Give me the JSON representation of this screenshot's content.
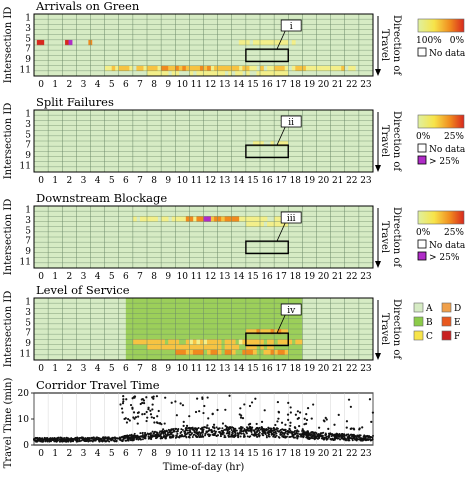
{
  "figure": {
    "x_ticks": [
      "0",
      "1",
      "2",
      "3",
      "4",
      "5",
      "6",
      "7",
      "8",
      "9",
      "10",
      "11",
      "12",
      "13",
      "14",
      "15",
      "16",
      "17",
      "18",
      "19",
      "20",
      "21",
      "22",
      "23"
    ],
    "y_ticks": [
      "1",
      "3",
      "5",
      "7",
      "9",
      "11"
    ],
    "ylabel_heatmap": "Intersection ID",
    "side_label": [
      "Direction of",
      "Travel"
    ],
    "xlabel": "Time-of-day (hr)"
  },
  "chart_data": [
    {
      "type": "heatmap",
      "title": "Arrivals on Green",
      "rows": 12,
      "x_range": [
        0,
        24
      ],
      "callout": "i",
      "highlight_box": {
        "x_from": 15,
        "x_to": 18,
        "row_from": 7,
        "row_to": 8
      },
      "legend": {
        "type": "gradient",
        "low_label": "100%",
        "high_label": "0%",
        "colors": [
          "#dff0a0",
          "#f7e44a",
          "#f08a1e",
          "#d8281e"
        ],
        "no_data_label": "No data"
      },
      "background_color": "#d6ebc4",
      "hot_cells": [
        {
          "row": 10,
          "x_from": 5,
          "x_to": 23,
          "level": 0.35
        },
        {
          "row": 10,
          "x_from": 9,
          "x_to": 15,
          "level": 0.55
        },
        {
          "row": 11,
          "x_from": 8,
          "x_to": 18,
          "level": 0.25
        },
        {
          "row": 5,
          "x_from": 0.2,
          "x_to": 0.6,
          "level": 0.85
        },
        {
          "row": 5,
          "x_from": 2.2,
          "x_to": 2.5,
          "level": 1.0
        },
        {
          "row": 5,
          "x_from": 3.6,
          "x_to": 3.9,
          "level": 0.9
        },
        {
          "row": 5,
          "x_from": 14.5,
          "x_to": 18.5,
          "level": 0.3
        }
      ]
    },
    {
      "type": "heatmap",
      "title": "Split Failures",
      "rows": 12,
      "x_range": [
        0,
        24
      ],
      "callout": "ii",
      "highlight_box": {
        "x_from": 15,
        "x_to": 18,
        "row_from": 7,
        "row_to": 8
      },
      "legend": {
        "type": "gradient",
        "low_label": "0%",
        "high_label": "25%",
        "colors": [
          "#dff0a0",
          "#f7e44a",
          "#f08a1e",
          "#d8281e"
        ],
        "no_data_label": "No data",
        "over_label": "> 25%",
        "over_color": "#b02cc8"
      },
      "background_color": "#d6ebc4",
      "hot_cells": [
        {
          "row": 6,
          "x_from": 15,
          "x_to": 18,
          "level": 0.18
        }
      ]
    },
    {
      "type": "heatmap",
      "title": "Downstream Blockage",
      "rows": 12,
      "x_range": [
        0,
        24
      ],
      "callout": "iii",
      "highlight_box": {
        "x_from": 15,
        "x_to": 18,
        "row_from": 7,
        "row_to": 8
      },
      "legend": {
        "type": "gradient",
        "low_label": "0%",
        "high_label": "25%",
        "colors": [
          "#dff0a0",
          "#f7e44a",
          "#f08a1e",
          "#d8281e"
        ],
        "no_data_label": "No data",
        "over_label": "> 25%",
        "over_color": "#b02cc8"
      },
      "background_color": "#d6ebc4",
      "hot_cells": [
        {
          "row": 2,
          "x_from": 7,
          "x_to": 18,
          "level": 0.3
        },
        {
          "row": 2,
          "x_from": 10.5,
          "x_to": 14.5,
          "level": 0.7
        },
        {
          "row": 2,
          "x_from": 12,
          "x_to": 12.5,
          "level": 1.2
        },
        {
          "row": 3,
          "x_from": 15,
          "x_to": 18,
          "level": 0.25
        }
      ]
    },
    {
      "type": "heatmap",
      "title": "Level of Service",
      "rows": 12,
      "x_range": [
        0,
        24
      ],
      "callout": "iv",
      "highlight_box": {
        "x_from": 15,
        "x_to": 18,
        "row_from": 7,
        "row_to": 8
      },
      "legend": {
        "type": "categorical",
        "items": [
          {
            "label": "A",
            "color": "#d6ebc4"
          },
          {
            "label": "B",
            "color": "#8ccc4a"
          },
          {
            "label": "C",
            "color": "#f7e44a"
          },
          {
            "label": "D",
            "color": "#f0a04a"
          },
          {
            "label": "E",
            "color": "#e8581e"
          },
          {
            "label": "F",
            "color": "#c82020"
          }
        ]
      },
      "background_color": "#d6ebc4",
      "band_green": {
        "x_from": 6.5,
        "x_to": 19,
        "color": "#9ccf5a"
      },
      "hot_cells": [
        {
          "row": 8,
          "x_from": 7,
          "x_to": 19,
          "level": 0.45
        },
        {
          "row": 9,
          "x_from": 8,
          "x_to": 17,
          "level": 0.5
        },
        {
          "row": 10,
          "x_from": 10,
          "x_to": 18,
          "level": 0.7
        },
        {
          "row": 6,
          "x_from": 15,
          "x_to": 18,
          "level": 0.55
        }
      ]
    },
    {
      "type": "scatter",
      "title": "Corridor Travel Time",
      "xlabel": "Time-of-day (hr)",
      "ylabel": "Travel Time (min)",
      "xlim": [
        0,
        24
      ],
      "ylim": [
        0,
        20
      ],
      "y_ticks": [
        "0",
        "10",
        "20"
      ],
      "series": [
        {
          "color": "#111111",
          "baseline": [
            {
              "x": 0,
              "y": 2
            },
            {
              "x": 6,
              "y": 2.2
            },
            {
              "x": 7,
              "y": 3
            },
            {
              "x": 8,
              "y": 3.5
            },
            {
              "x": 10,
              "y": 4.5
            },
            {
              "x": 12,
              "y": 5
            },
            {
              "x": 14,
              "y": 5
            },
            {
              "x": 16,
              "y": 5
            },
            {
              "x": 18,
              "y": 4.5
            },
            {
              "x": 20,
              "y": 3.5
            },
            {
              "x": 22,
              "y": 3
            },
            {
              "x": 24,
              "y": 2.5
            }
          ],
          "outlier_cluster": {
            "x_from": 6,
            "x_to": 9,
            "y_from": 8,
            "y_to": 19
          },
          "outlier_spread": {
            "x_from": 9,
            "x_to": 24,
            "y_from": 6,
            "y_to": 19
          }
        }
      ]
    }
  ]
}
